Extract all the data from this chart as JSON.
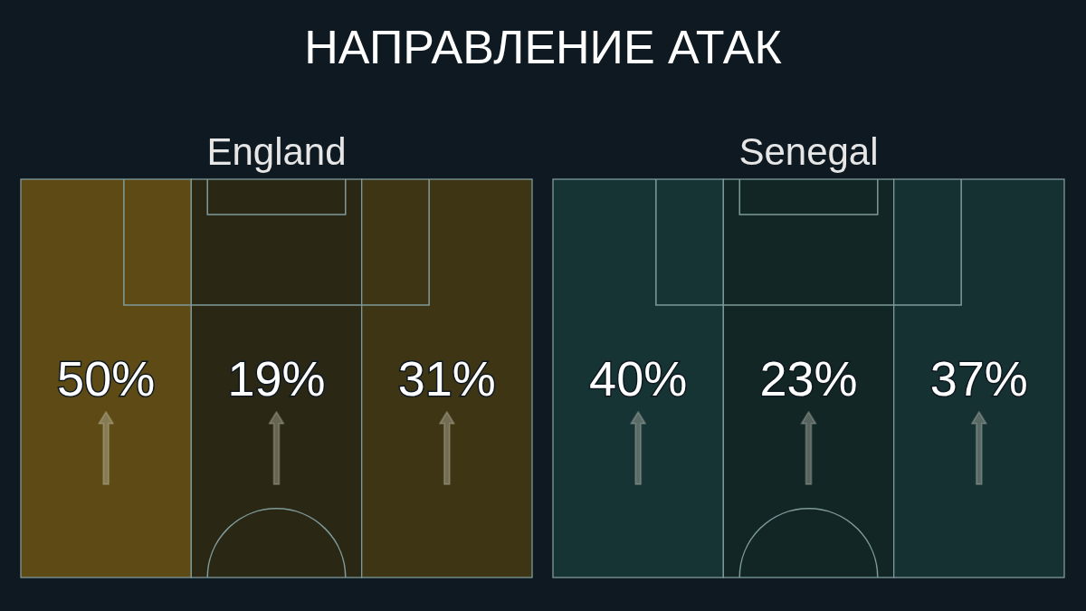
{
  "chart_data": [
    {
      "type": "other",
      "title": "НАПРАВЛЕНИЕ АТАК",
      "subtitle": "England",
      "categories": [
        null,
        null,
        null
      ],
      "values": [
        50,
        19,
        31
      ],
      "value_labels": [
        "50%",
        "19%",
        "31%"
      ],
      "color": "#5d4a15"
    },
    {
      "type": "other",
      "subtitle": "Senegal",
      "categories": [
        null,
        null,
        null
      ],
      "values": [
        40,
        23,
        37
      ],
      "value_labels": [
        "40%",
        "23%",
        "37%"
      ],
      "color": "#173434"
    }
  ]
}
